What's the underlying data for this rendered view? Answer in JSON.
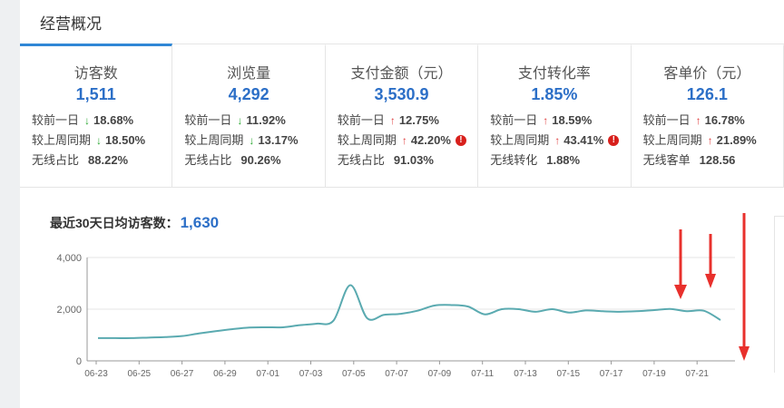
{
  "header": {
    "title": "经营概况"
  },
  "kpis": [
    {
      "name": "访客数",
      "value": "1,511",
      "rows": [
        {
          "label": "较前一日",
          "dir": "down",
          "value": "18.68%",
          "warn": false
        },
        {
          "label": "较上周同期",
          "dir": "down",
          "value": "18.50%",
          "warn": false
        },
        {
          "label": "无线占比",
          "dir": "none",
          "value": "88.22%",
          "warn": false
        }
      ]
    },
    {
      "name": "浏览量",
      "value": "4,292",
      "rows": [
        {
          "label": "较前一日",
          "dir": "down",
          "value": "11.92%",
          "warn": false
        },
        {
          "label": "较上周同期",
          "dir": "down",
          "value": "13.17%",
          "warn": false
        },
        {
          "label": "无线占比",
          "dir": "none",
          "value": "90.26%",
          "warn": false
        }
      ]
    },
    {
      "name": "支付金额（元）",
      "value": "3,530.9",
      "rows": [
        {
          "label": "较前一日",
          "dir": "up",
          "value": "12.75%",
          "warn": false
        },
        {
          "label": "较上周同期",
          "dir": "up",
          "value": "42.20%",
          "warn": true
        },
        {
          "label": "无线占比",
          "dir": "none",
          "value": "91.03%",
          "warn": false
        }
      ]
    },
    {
      "name": "支付转化率",
      "value": "1.85%",
      "rows": [
        {
          "label": "较前一日",
          "dir": "up",
          "value": "18.59%",
          "warn": false
        },
        {
          "label": "较上周同期",
          "dir": "up",
          "value": "43.41%",
          "warn": true
        },
        {
          "label": "无线转化",
          "dir": "none",
          "value": "1.88%",
          "warn": false
        }
      ]
    },
    {
      "name": "客单价（元）",
      "value": "126.1",
      "rows": [
        {
          "label": "较前一日",
          "dir": "up",
          "value": "16.78%",
          "warn": false
        },
        {
          "label": "较上周同期",
          "dir": "up",
          "value": "21.89%",
          "warn": false
        },
        {
          "label": "无线客单",
          "dir": "none",
          "value": "128.56",
          "warn": false
        }
      ]
    }
  ],
  "avg": {
    "label": "最近30天日均访客数：",
    "value": "1,630"
  },
  "colors": {
    "accent": "#2c6fc7",
    "line": "#5aaab0",
    "up": "#e04040",
    "down": "#2aa832",
    "warn": "#d8201c",
    "annotation_arrow": "#e8302c"
  },
  "chart_data": {
    "type": "line",
    "yticks": [
      "0",
      "2,000",
      "4,000"
    ],
    "ylim": [
      0,
      4000
    ],
    "xticks": [
      "06-23",
      "06-25",
      "06-27",
      "06-29",
      "07-01",
      "07-03",
      "07-05",
      "07-07",
      "07-09",
      "07-11",
      "07-13",
      "07-15",
      "07-17",
      "07-19",
      "07-21"
    ],
    "series": [
      {
        "values": [
          880,
          880,
          880,
          900,
          920,
          960,
          1060,
          1150,
          1230,
          1290,
          1300,
          1300,
          1380,
          1440,
          1560,
          2930,
          1650,
          1780,
          1820,
          1940,
          2140,
          2160,
          2100,
          1800,
          2000,
          2000,
          1900,
          2000,
          1870,
          1950,
          1920,
          1900,
          1920,
          1960,
          2010,
          1920,
          1940,
          1580
        ]
      }
    ]
  }
}
